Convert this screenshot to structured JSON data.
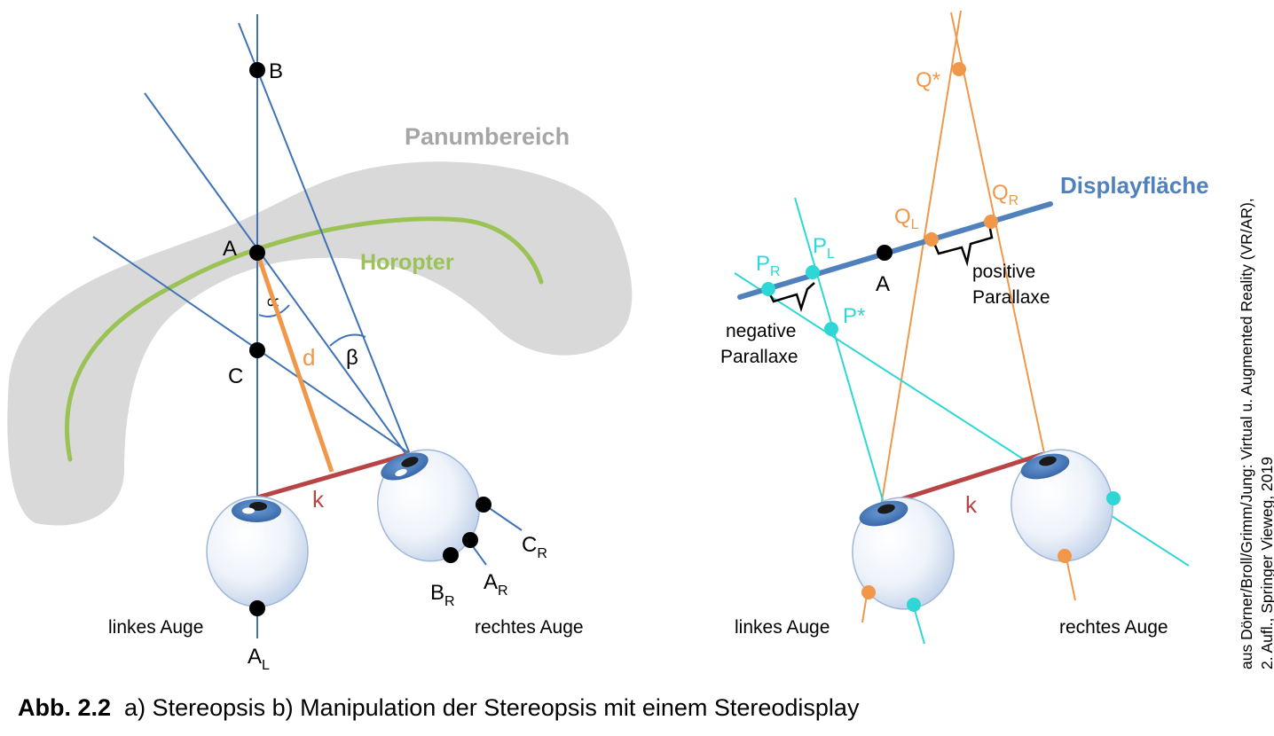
{
  "caption": {
    "number": "Abb. 2.2",
    "text": "a) Stereopsis b) Manipulation der Stereopsis mit einem Stereodisplay"
  },
  "credit": {
    "line1": "aus Dörner/Broll/Grimm/Jung: Virtual u. Augmented Reality (VR/AR),",
    "line2": "2. Aufl., Springer Vieweg, 2019"
  },
  "diagram_a": {
    "region_label": "Panumbereich",
    "curve_label": "Horopter",
    "left_eye": "linkes Auge",
    "right_eye": "rechtes Auge",
    "points": {
      "B": "B",
      "A": "A",
      "C": "C",
      "AL": {
        "main": "A",
        "sub": "L"
      },
      "AR": {
        "main": "A",
        "sub": "R"
      },
      "BR": {
        "main": "B",
        "sub": "R"
      },
      "CR": {
        "main": "C",
        "sub": "R"
      }
    },
    "angles": {
      "alpha": "∝",
      "beta": "β"
    },
    "distance_label": "d",
    "baseline_label": "k"
  },
  "diagram_b": {
    "display_label": "Displayfläche",
    "left_eye": "linkes Auge",
    "right_eye": "rechtes Auge",
    "point_A": "A",
    "point_Q_star": "Q*",
    "point_P_star": "P*",
    "QL": {
      "main": "Q",
      "sub": "L"
    },
    "QR": {
      "main": "Q",
      "sub": "R"
    },
    "PL": {
      "main": "P",
      "sub": "L"
    },
    "PR": {
      "main": "P",
      "sub": "R"
    },
    "negative_parallax": [
      "negative",
      "Parallaxe"
    ],
    "positive_parallax": [
      "positive",
      "Parallaxe"
    ],
    "baseline_label": "k"
  },
  "colors": {
    "blue_line": "#3f73b5",
    "orange": "#f0974a",
    "cyan": "#2fd6d6",
    "red": "#b84545",
    "green": "#9ac254",
    "gray_region": "#d9d9d9",
    "gray_text": "#a6a6a6",
    "display_blue": "#4f81bd"
  }
}
